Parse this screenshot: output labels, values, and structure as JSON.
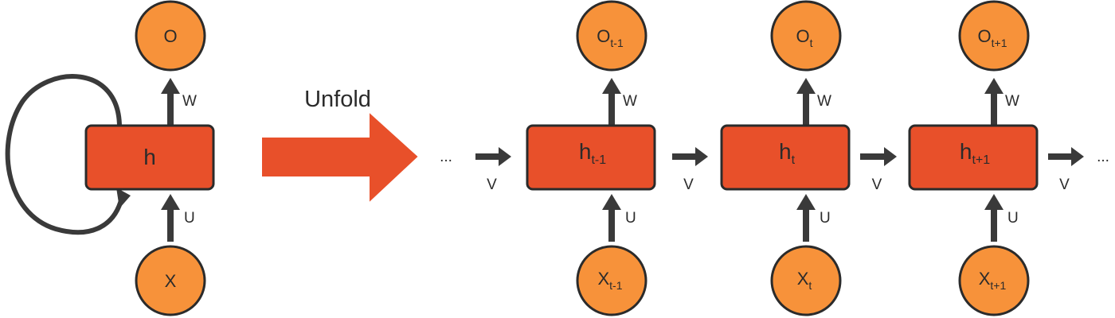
{
  "folded": {
    "output": "O",
    "hidden": "h",
    "input": "X",
    "weight_output": "W",
    "weight_input": "U"
  },
  "unfold_label": "Unfold",
  "ellipsis_left": "...",
  "ellipsis_right": "...",
  "recurrent_weight": "V",
  "steps": [
    {
      "output_base": "O",
      "output_sub": "t-1",
      "hidden_base": "h",
      "hidden_sub": "t-1",
      "input_base": "X",
      "input_sub": "t-1",
      "weight_output": "W",
      "weight_input": "U"
    },
    {
      "output_base": "O",
      "output_sub": "t",
      "hidden_base": "h",
      "hidden_sub": "t",
      "input_base": "X",
      "input_sub": "t",
      "weight_output": "W",
      "weight_input": "U"
    },
    {
      "output_base": "O",
      "output_sub": "t+1",
      "hidden_base": "h",
      "hidden_sub": "t+1",
      "input_base": "X",
      "input_sub": "t+1",
      "weight_output": "W",
      "weight_input": "U"
    }
  ],
  "colors": {
    "node_fill": "#f7923a",
    "box_fill": "#e8502a",
    "unfold_arrow": "#e8502a",
    "stroke": "#2b2b2b",
    "arrow": "#3a3a3a"
  }
}
